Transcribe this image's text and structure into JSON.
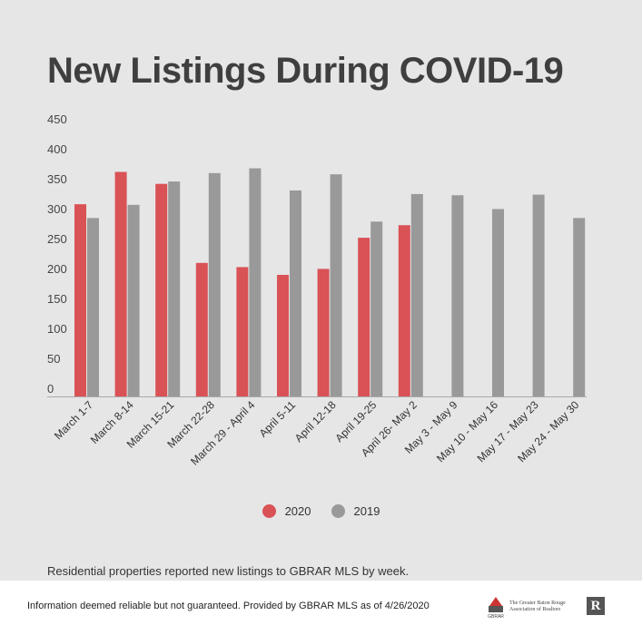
{
  "title": "New Listings During COVID-19",
  "chart_data": {
    "type": "bar",
    "title": "New Listings During COVID-19",
    "categories": [
      "March 1-7",
      "March 8-14",
      "March 15-21",
      "March 22-28",
      "March 29 - April 4",
      "April 5-11",
      "April 12-18",
      "April 19-25",
      "April 26- May 2",
      "May 3 - May 9",
      "May 10 - May 16",
      "May 17 - May 23",
      "May 24 - May 30"
    ],
    "series": [
      {
        "name": "2020",
        "color": "#d95256",
        "values": [
          307,
          361,
          341,
          209,
          202,
          189,
          199,
          251,
          272,
          null,
          null,
          null,
          null
        ]
      },
      {
        "name": "2019",
        "color": "#999999",
        "values": [
          284,
          306,
          345,
          359,
          367,
          330,
          357,
          278,
          324,
          322,
          299,
          323,
          284
        ]
      }
    ],
    "yticks": [
      0,
      50,
      100,
      150,
      200,
      250,
      300,
      350,
      400,
      450
    ],
    "ylim": [
      0,
      450
    ],
    "grid": false,
    "legend": "bottom-center"
  },
  "caption": "Residential properties reported new listings to GBRAR MLS by week.",
  "footer": "Information deemed reliable but not guaranteed. Provided by GBRAR MLS as of 4/26/2020",
  "logo": {
    "text": "The Greater Baton Rouge Association of Realtors",
    "abbr": "GBRAR",
    "realtor_mark": "R"
  }
}
